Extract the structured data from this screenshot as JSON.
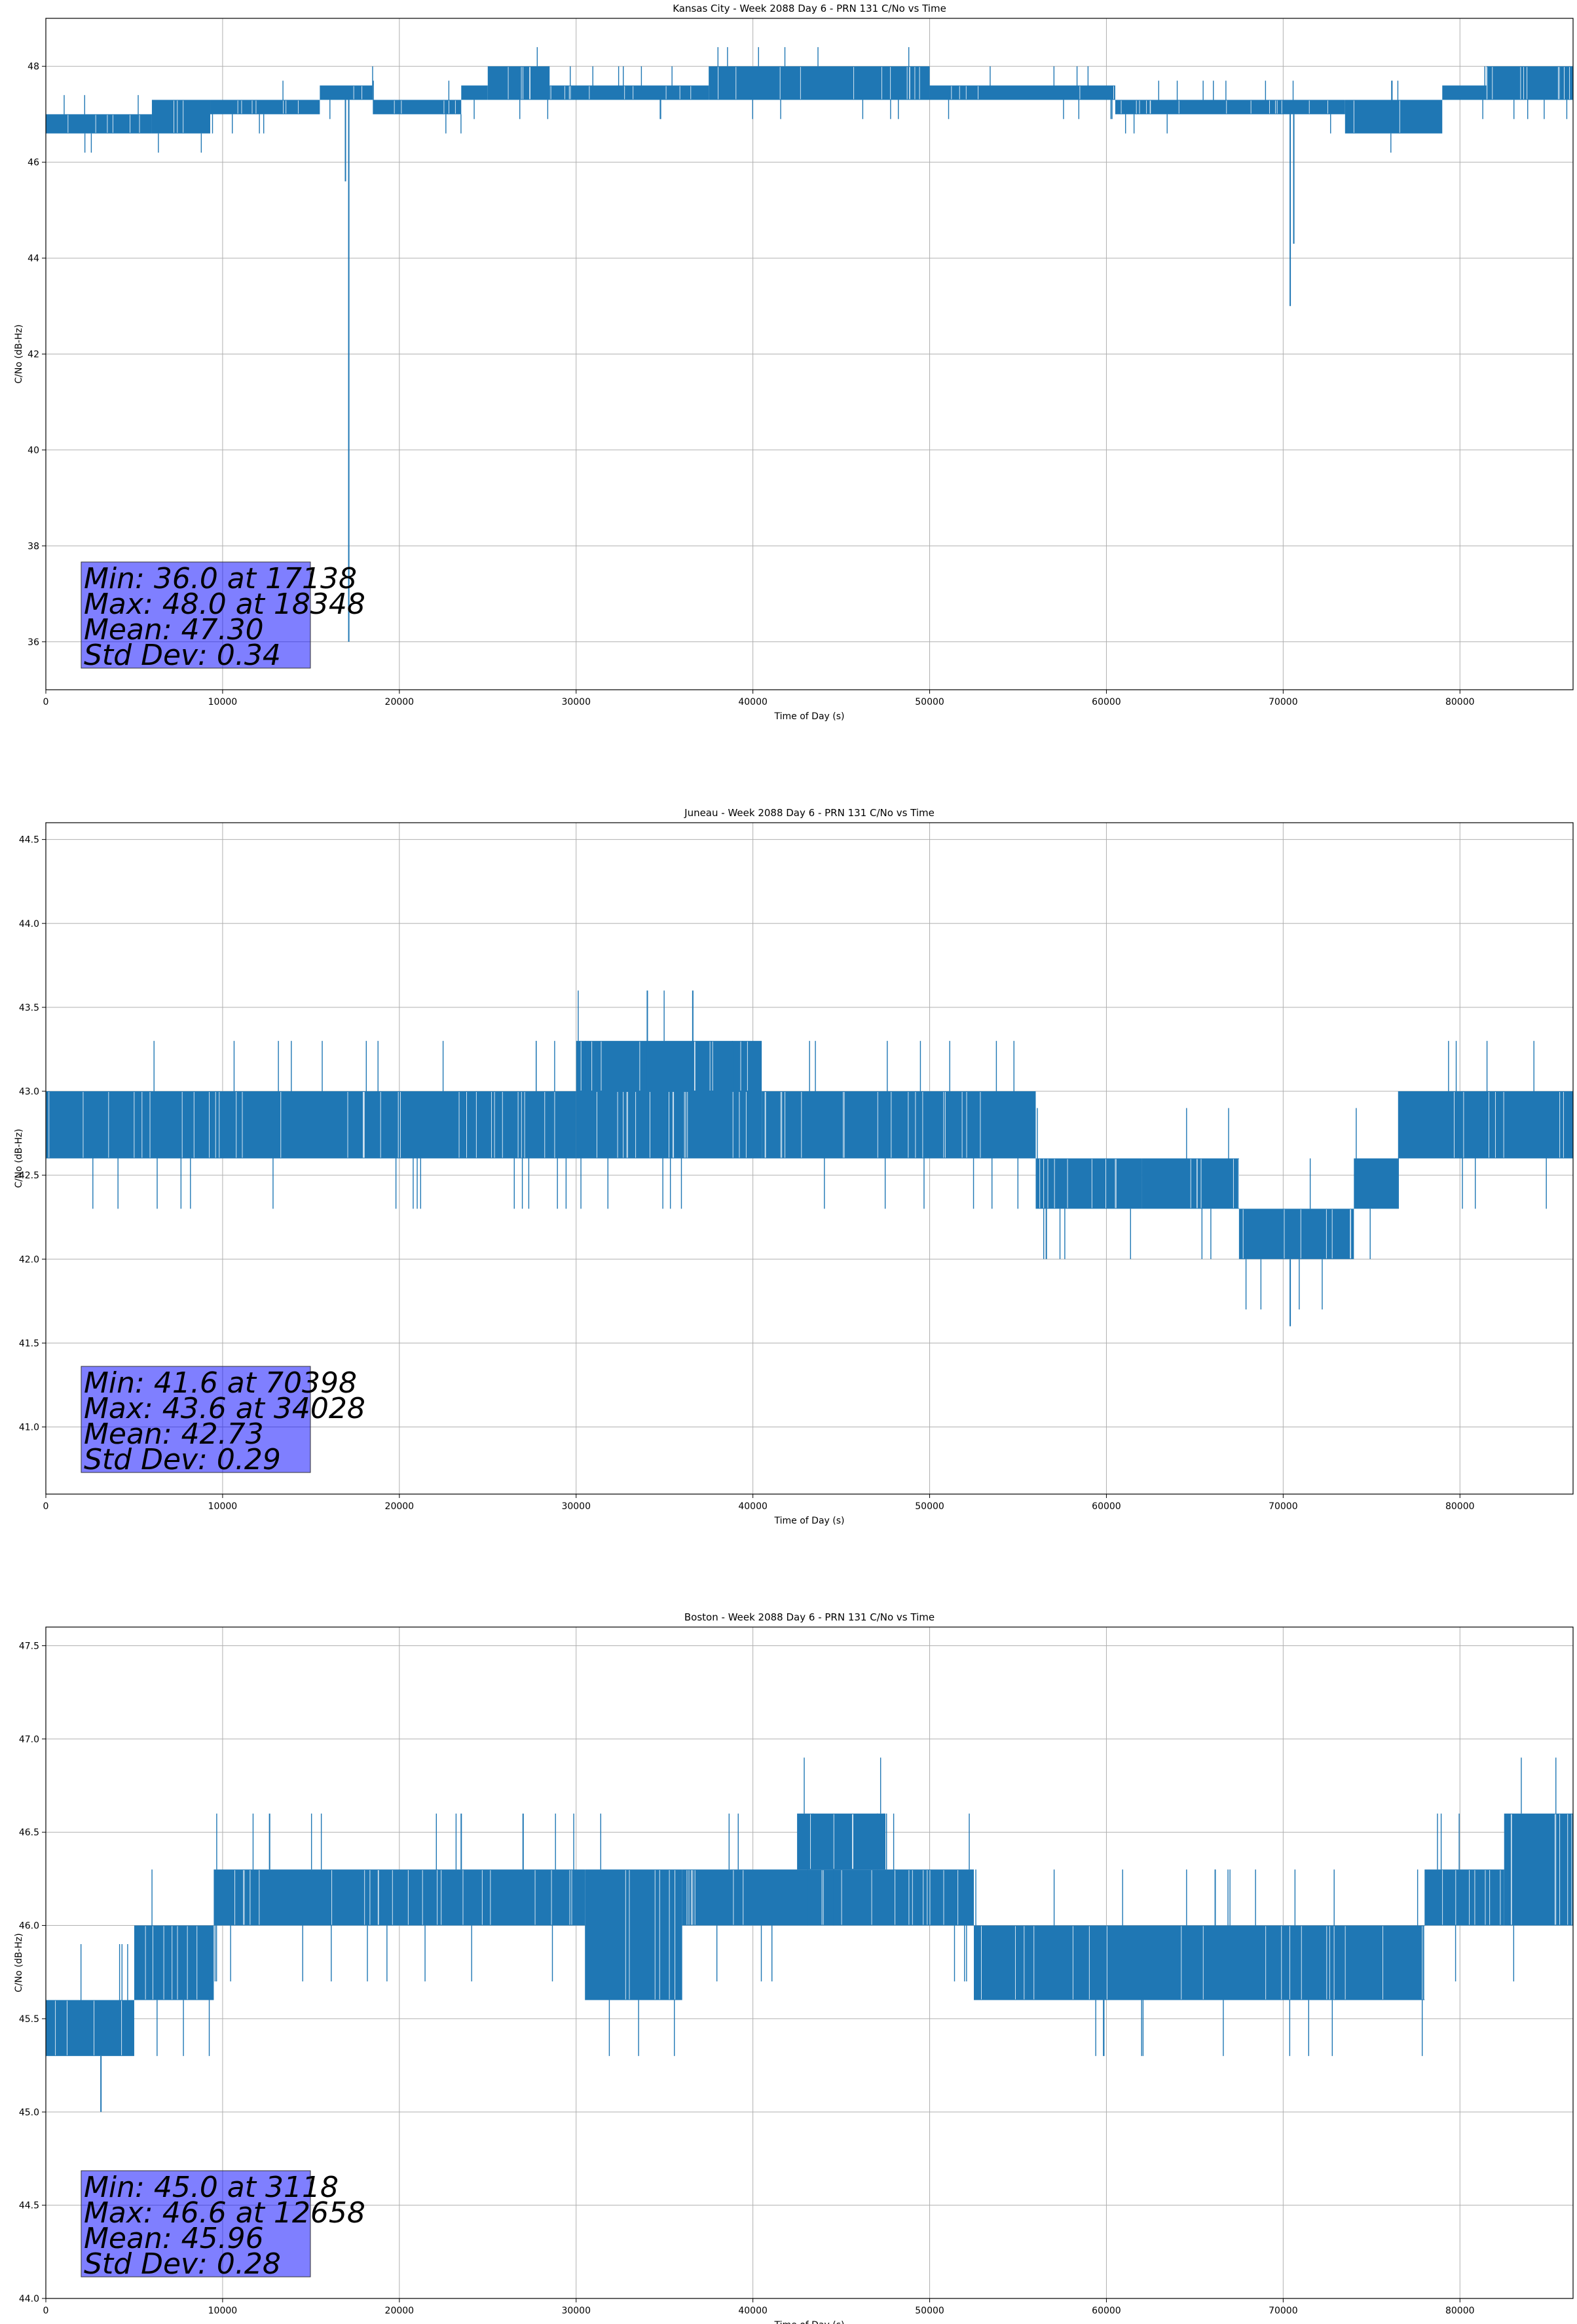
{
  "chart_data": [
    {
      "type": "line",
      "title": "Kansas City - Week 2088 Day 6 - PRN 131 C/No vs Time",
      "xlabel": "Time of Day (s)",
      "ylabel": "C/No (dB-Hz)",
      "xlim": [
        0,
        86400
      ],
      "ylim": [
        35.0,
        49.0
      ],
      "xticks": [
        0,
        10000,
        20000,
        30000,
        40000,
        50000,
        60000,
        70000,
        80000
      ],
      "yticks": [
        36,
        38,
        40,
        42,
        44,
        46,
        48
      ],
      "grid": true,
      "color": "#1f77b4",
      "stats": [
        "Min: 36.0 at 17138",
        "Max: 48.0 at 18348",
        "Mean: 47.30",
        "Std Dev: 0.34"
      ],
      "bands": [
        {
          "x": [
            0,
            6000
          ],
          "y": [
            46.6,
            47.0
          ]
        },
        {
          "x": [
            6000,
            9300
          ],
          "y": [
            46.6,
            47.3
          ]
        },
        {
          "x": [
            9300,
            15500
          ],
          "y": [
            47.0,
            47.3
          ]
        },
        {
          "x": [
            15500,
            18500
          ],
          "y": [
            47.3,
            47.6
          ]
        },
        {
          "x": [
            18500,
            23500
          ],
          "y": [
            47.0,
            47.3
          ]
        },
        {
          "x": [
            23500,
            25000
          ],
          "y": [
            47.3,
            47.6
          ]
        },
        {
          "x": [
            25000,
            28500
          ],
          "y": [
            47.3,
            48.0
          ]
        },
        {
          "x": [
            28500,
            37500
          ],
          "y": [
            47.3,
            47.6
          ]
        },
        {
          "x": [
            37500,
            50000
          ],
          "y": [
            47.3,
            48.0
          ]
        },
        {
          "x": [
            50000,
            60500
          ],
          "y": [
            47.3,
            47.6
          ]
        },
        {
          "x": [
            60500,
            73500
          ],
          "y": [
            47.0,
            47.3
          ]
        },
        {
          "x": [
            73500,
            79000
          ],
          "y": [
            46.6,
            47.3
          ]
        },
        {
          "x": [
            79000,
            81500
          ],
          "y": [
            47.3,
            47.6
          ]
        },
        {
          "x": [
            81500,
            86400
          ],
          "y": [
            47.3,
            48.0
          ]
        }
      ],
      "spikes": [
        {
          "x": 17138,
          "y": 36.0
        },
        {
          "x": 16950,
          "y": 45.6
        },
        {
          "x": 70398,
          "y": 43.0
        },
        {
          "x": 70600,
          "y": 44.3
        }
      ]
    },
    {
      "type": "line",
      "title": "Juneau - Week 2088 Day 6 - PRN 131 C/No vs Time",
      "xlabel": "Time of Day (s)",
      "ylabel": "C/No (dB-Hz)",
      "xlim": [
        0,
        86400
      ],
      "ylim": [
        40.6,
        44.6
      ],
      "xticks": [
        0,
        10000,
        20000,
        30000,
        40000,
        50000,
        60000,
        70000,
        80000
      ],
      "yticks": [
        41.0,
        41.5,
        42.0,
        42.5,
        43.0,
        43.5,
        44.0,
        44.5
      ],
      "grid": true,
      "color": "#1f77b4",
      "stats": [
        "Min: 41.6 at 70398",
        "Max: 43.6 at 34028",
        "Mean: 42.73",
        "Std Dev: 0.29"
      ],
      "bands": [
        {
          "x": [
            0,
            30000
          ],
          "y": [
            42.6,
            43.0
          ]
        },
        {
          "x": [
            30000,
            40500
          ],
          "y": [
            43.0,
            43.3
          ]
        },
        {
          "x": [
            30000,
            40500
          ],
          "y": [
            42.6,
            43.0
          ]
        },
        {
          "x": [
            40500,
            56000
          ],
          "y": [
            42.6,
            43.0
          ]
        },
        {
          "x": [
            56000,
            62000
          ],
          "y": [
            42.3,
            42.6
          ]
        },
        {
          "x": [
            62000,
            67500
          ],
          "y": [
            42.3,
            42.6
          ]
        },
        {
          "x": [
            67500,
            74000
          ],
          "y": [
            42.0,
            42.3
          ]
        },
        {
          "x": [
            74000,
            76500
          ],
          "y": [
            42.3,
            42.6
          ]
        },
        {
          "x": [
            76500,
            86400
          ],
          "y": [
            42.6,
            43.0
          ]
        }
      ],
      "spikes": [
        {
          "x": 34028,
          "y": 43.6
        },
        {
          "x": 36600,
          "y": 43.6
        },
        {
          "x": 70398,
          "y": 41.6
        },
        {
          "x": 56600,
          "y": 42.0
        }
      ]
    },
    {
      "type": "line",
      "title": "Boston - Week 2088 Day 6 - PRN 131 C/No vs Time",
      "xlabel": "Time of Day (s)",
      "ylabel": "C/No (dB-Hz)",
      "xlim": [
        0,
        86400
      ],
      "ylim": [
        44.0,
        47.6
      ],
      "xticks": [
        0,
        10000,
        20000,
        30000,
        40000,
        50000,
        60000,
        70000,
        80000
      ],
      "yticks": [
        44.0,
        44.5,
        45.0,
        45.5,
        46.0,
        46.5,
        47.0,
        47.5
      ],
      "grid": true,
      "color": "#1f77b4",
      "stats": [
        "Min: 45.0 at 3118",
        "Max: 46.6 at 12658",
        "Mean: 45.96",
        "Std Dev: 0.28"
      ],
      "bands": [
        {
          "x": [
            0,
            5000
          ],
          "y": [
            45.3,
            45.6
          ]
        },
        {
          "x": [
            5000,
            9500
          ],
          "y": [
            45.6,
            46.0
          ]
        },
        {
          "x": [
            9500,
            30500
          ],
          "y": [
            46.0,
            46.3
          ]
        },
        {
          "x": [
            30500,
            36000
          ],
          "y": [
            45.6,
            46.3
          ]
        },
        {
          "x": [
            36000,
            52500
          ],
          "y": [
            46.0,
            46.3
          ]
        },
        {
          "x": [
            42500,
            47500
          ],
          "y": [
            46.3,
            46.6
          ]
        },
        {
          "x": [
            52500,
            78000
          ],
          "y": [
            45.6,
            46.0
          ]
        },
        {
          "x": [
            78000,
            82500
          ],
          "y": [
            46.0,
            46.3
          ]
        },
        {
          "x": [
            82500,
            86400
          ],
          "y": [
            46.0,
            46.6
          ]
        }
      ],
      "spikes": [
        {
          "x": 3118,
          "y": 45.0
        },
        {
          "x": 12658,
          "y": 46.6
        },
        {
          "x": 23500,
          "y": 46.6
        },
        {
          "x": 27000,
          "y": 46.6
        }
      ]
    }
  ]
}
